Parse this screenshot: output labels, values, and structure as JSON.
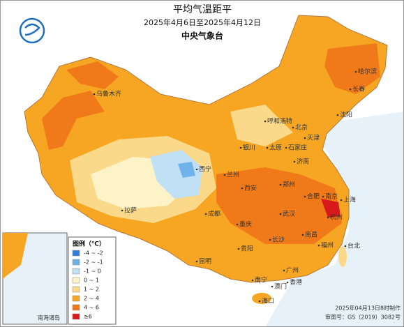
{
  "header": {
    "title": "平均气温距平",
    "period": "2025年4月6日至2025年4月12日",
    "agency": "中央气象台"
  },
  "legend": {
    "title": "图例（℃）",
    "items": [
      {
        "label": "-4 ~ -2",
        "color": "#2f7fd8"
      },
      {
        "label": "-2 ~ -1",
        "color": "#6fb3ea"
      },
      {
        "label": "-1 ~ 0",
        "color": "#bfe0f5"
      },
      {
        "label": "0 ~ 1",
        "color": "#fdf3c8"
      },
      {
        "label": "1 ~ 2",
        "color": "#fbd98a"
      },
      {
        "label": "2 ~ 4",
        "color": "#f6a623"
      },
      {
        "label": "4 ~ 6",
        "color": "#f07a1a"
      },
      {
        "label": "≥6",
        "color": "#d7191c"
      }
    ]
  },
  "cities": [
    "乌鲁木齐",
    "哈尔滨",
    "长春",
    "沈阳",
    "北京",
    "天津",
    "呼和浩特",
    "银川",
    "太原",
    "石家庄",
    "济南",
    "西宁",
    "兰州",
    "郑州",
    "西安",
    "拉萨",
    "成都",
    "合肥",
    "南京",
    "上海",
    "武汉",
    "杭州",
    "重庆",
    "长沙",
    "南昌",
    "贵阳",
    "福州",
    "台北",
    "昆明",
    "南宁",
    "广州",
    "香港",
    "澳门",
    "海口"
  ],
  "inset": {
    "label": "南海诸岛"
  },
  "footer": {
    "made": "2025年04月13日8时制作",
    "approval": "审图号：GS（2019）3082号"
  }
}
